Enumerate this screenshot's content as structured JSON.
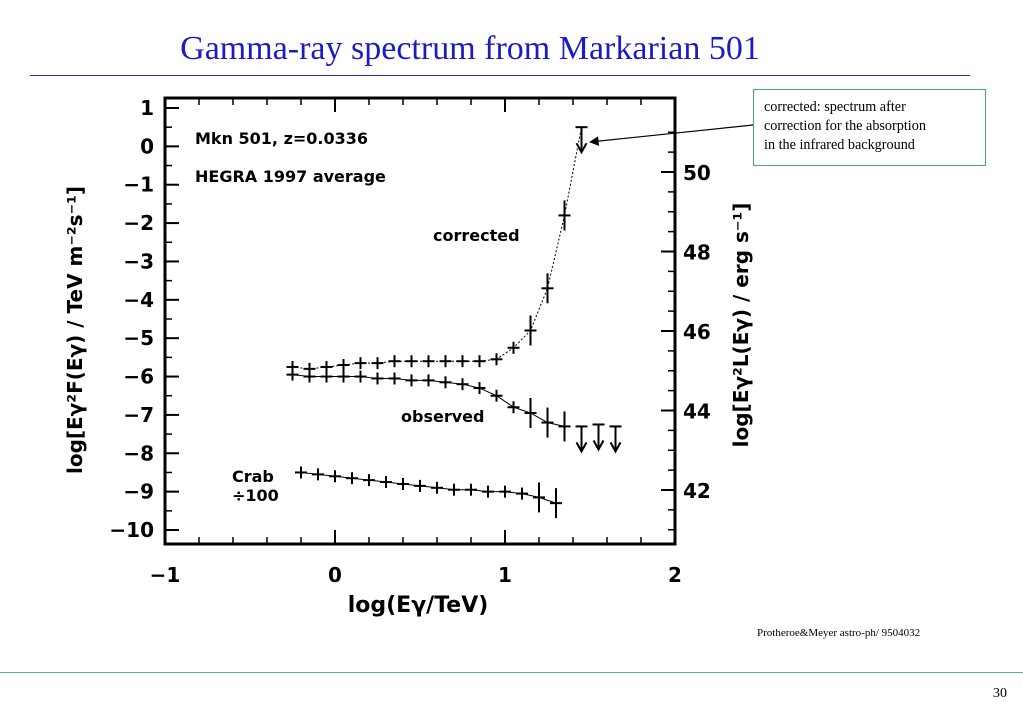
{
  "slide": {
    "title": "Gamma-ray spectrum from Markarian 501",
    "callout_lines": [
      "corrected: spectrum after",
      "correction for the absorption",
      "in the infrared background"
    ],
    "credit": "Protheroe&Meyer astro-ph/ 9504032",
    "page_number": "30"
  },
  "colors": {
    "title": "#1c1cc4",
    "rule": "#2233aa",
    "callout_border": "#3fae6a",
    "footer_rule": "#5fa7a7",
    "plot_ink": "#000000"
  },
  "chart_data": {
    "type": "scatter",
    "annotations": {
      "source_line1": "Mkn 501, z=0.0336",
      "source_line2": "HEGRA 1997 average",
      "crab_line1": "Crab",
      "crab_line2": "÷100"
    },
    "xlabel": "log(Eγ/TeV)",
    "ylabel": "log[Eγ²F(Eγ) / TeV m⁻²s⁻¹]",
    "y2label": "log[Eγ²L(Eγ) / erg s⁻¹]",
    "xlim": [
      -1,
      2
    ],
    "ylim": [
      -10.2,
      1.2
    ],
    "y2lim": [
      40.8,
      51.5
    ],
    "xticks": [
      -1,
      0,
      1,
      2
    ],
    "xtick_labels": [
      "−1",
      "0",
      "1",
      "2"
    ],
    "yticks": [
      1,
      0,
      -1,
      -2,
      -3,
      -4,
      -5,
      -6,
      -7,
      -8,
      -9,
      -10
    ],
    "ytick_labels": [
      "1",
      "0",
      "−1",
      "−2",
      "−3",
      "−4",
      "−5",
      "−6",
      "−7",
      "−8",
      "−9",
      "−10"
    ],
    "y2ticks": [
      42,
      44,
      46,
      48,
      50
    ],
    "y2tick_labels": [
      "42",
      "44",
      "46",
      "48",
      "50"
    ],
    "series": [
      {
        "name": "corrected",
        "x": [
          -0.25,
          -0.15,
          -0.05,
          0.05,
          0.15,
          0.25,
          0.35,
          0.45,
          0.55,
          0.65,
          0.75,
          0.85,
          0.95,
          1.05,
          1.15,
          1.25,
          1.35
        ],
        "y": [
          -5.75,
          -5.8,
          -5.75,
          -5.7,
          -5.65,
          -5.65,
          -5.6,
          -5.6,
          -5.6,
          -5.6,
          -5.6,
          -5.6,
          -5.55,
          -5.25,
          -4.8,
          -3.7,
          -1.8
        ],
        "upper_limit_x": [
          1.45
        ],
        "upper_limit_y": [
          0.5
        ]
      },
      {
        "name": "observed",
        "x": [
          -0.25,
          -0.15,
          -0.05,
          0.05,
          0.15,
          0.25,
          0.35,
          0.45,
          0.55,
          0.65,
          0.75,
          0.85,
          0.95,
          1.05,
          1.15,
          1.25,
          1.35
        ],
        "y": [
          -5.95,
          -6.0,
          -6.0,
          -6.0,
          -6.0,
          -6.05,
          -6.05,
          -6.1,
          -6.1,
          -6.15,
          -6.2,
          -6.3,
          -6.5,
          -6.8,
          -6.95,
          -7.2,
          -7.3
        ],
        "upper_limit_x": [
          1.45,
          1.55,
          1.65
        ],
        "upper_limit_y": [
          -7.3,
          -7.25,
          -7.3
        ]
      },
      {
        "name": "Crab ÷100",
        "x": [
          -0.2,
          -0.1,
          0.0,
          0.1,
          0.2,
          0.3,
          0.4,
          0.5,
          0.6,
          0.7,
          0.8,
          0.9,
          1.0,
          1.1,
          1.2,
          1.3
        ],
        "y": [
          -8.5,
          -8.55,
          -8.6,
          -8.65,
          -8.7,
          -8.75,
          -8.8,
          -8.85,
          -8.9,
          -8.95,
          -8.95,
          -9.0,
          -9.0,
          -9.05,
          -9.15,
          -9.3
        ]
      }
    ]
  }
}
